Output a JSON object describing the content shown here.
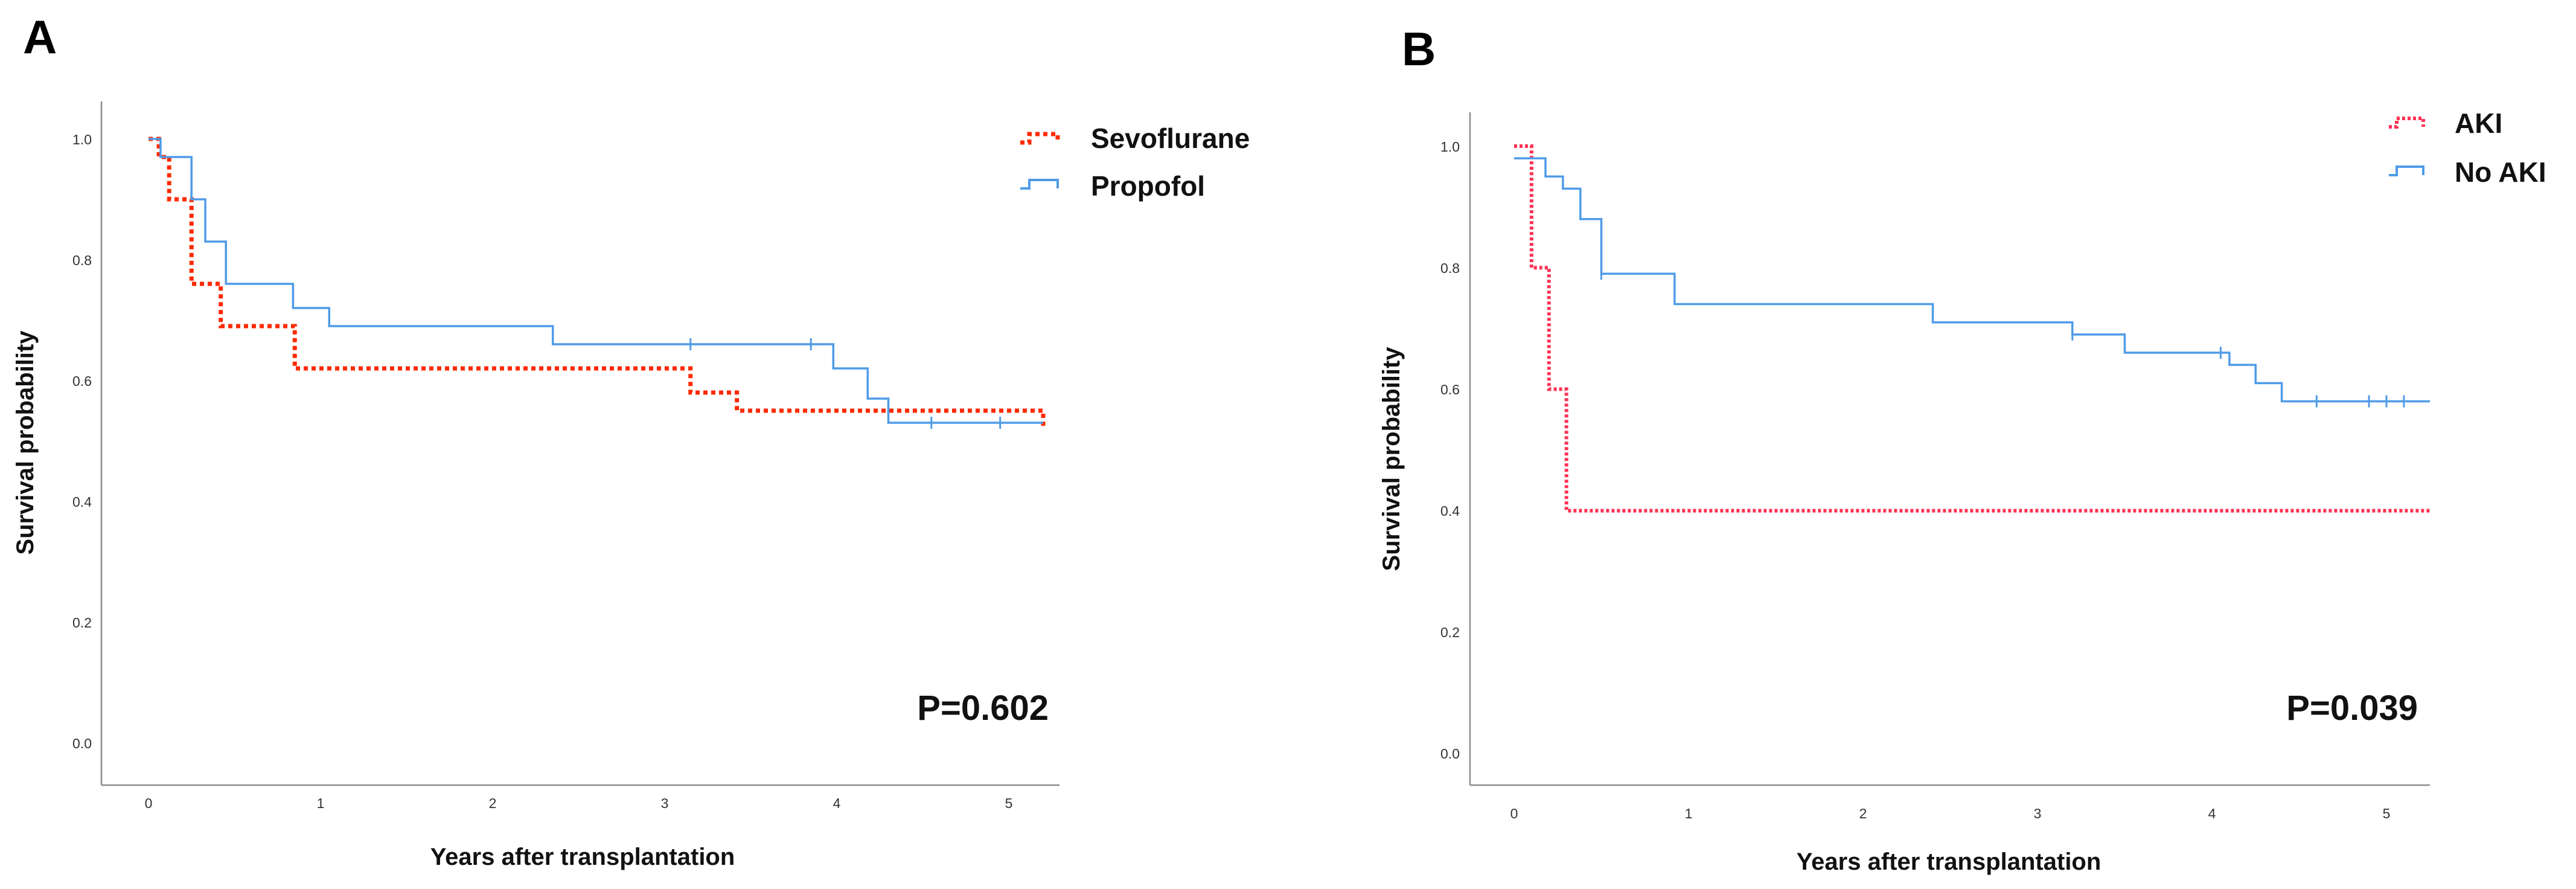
{
  "chart_data": [
    {
      "type": "line",
      "step": true,
      "panel": "A",
      "xlabel": "Years after transplantation",
      "ylabel": "Survival probability",
      "xlim": [
        -0.25,
        5.25
      ],
      "ylim": [
        0.0,
        1.0
      ],
      "xticks": [
        0,
        1,
        2,
        3,
        4,
        5
      ],
      "yticks": [
        0.0,
        0.2,
        0.4,
        0.6,
        0.8,
        1.0
      ],
      "tick_labels_x": [
        "0",
        "1",
        "2",
        "3",
        "4",
        "5"
      ],
      "tick_labels_y": [
        "0.0",
        "0.2",
        "0.4",
        "0.6",
        "0.8",
        "1.0"
      ],
      "legend_position": "top-right",
      "annotation": "P=0.602",
      "series": [
        {
          "name": "Sevoflurane",
          "color": "#ff2a00",
          "style": "dotted",
          "x": [
            0.0,
            0.06,
            0.12,
            0.25,
            0.42,
            0.85,
            3.15,
            3.42,
            5.2
          ],
          "y": [
            1.0,
            0.97,
            0.9,
            0.76,
            0.69,
            0.62,
            0.58,
            0.55,
            0.52
          ],
          "censored": []
        },
        {
          "name": "Propofol",
          "color": "#4f9be8",
          "style": "solid",
          "x": [
            0.0,
            0.07,
            0.25,
            0.33,
            0.45,
            0.84,
            1.05,
            2.35,
            3.98,
            4.18,
            4.3,
            5.2
          ],
          "y": [
            1.0,
            0.97,
            0.9,
            0.83,
            0.76,
            0.72,
            0.69,
            0.66,
            0.62,
            0.57,
            0.53,
            0.53
          ],
          "censored": [
            {
              "x": 3.15,
              "y": 0.66
            },
            {
              "x": 3.85,
              "y": 0.66
            },
            {
              "x": 4.55,
              "y": 0.53
            },
            {
              "x": 4.95,
              "y": 0.53
            }
          ]
        }
      ]
    },
    {
      "type": "line",
      "step": true,
      "panel": "B",
      "xlabel": "Years after transplantation",
      "ylabel": "Survival probability",
      "xlim": [
        -0.25,
        5.25
      ],
      "ylim": [
        0.0,
        1.0
      ],
      "xticks": [
        0,
        1,
        2,
        3,
        4,
        5
      ],
      "yticks": [
        0.0,
        0.2,
        0.4,
        0.6,
        0.8,
        1.0
      ],
      "tick_labels_x": [
        "0",
        "1",
        "2",
        "3",
        "4",
        "5"
      ],
      "tick_labels_y": [
        "0.0",
        "0.2",
        "0.4",
        "0.6",
        "0.8",
        "1.0"
      ],
      "legend_position": "top-right",
      "annotation": "P=0.039",
      "series": [
        {
          "name": "AKI",
          "color": "#ff3355",
          "style": "dotted",
          "x": [
            0.0,
            0.1,
            0.2,
            0.3,
            5.3
          ],
          "y": [
            1.0,
            0.8,
            0.6,
            0.4,
            0.4
          ],
          "censored": []
        },
        {
          "name": "No AKI",
          "color": "#4f9be8",
          "style": "solid",
          "x": [
            0.0,
            0.18,
            0.28,
            0.38,
            0.5,
            0.92,
            2.4,
            3.2,
            3.5,
            4.1,
            4.25,
            4.4,
            5.3
          ],
          "y": [
            0.98,
            0.95,
            0.93,
            0.88,
            0.79,
            0.74,
            0.71,
            0.69,
            0.66,
            0.64,
            0.61,
            0.58,
            0.58
          ],
          "censored": [
            {
              "x": 0.5,
              "y": 0.79
            },
            {
              "x": 3.2,
              "y": 0.69
            },
            {
              "x": 4.05,
              "y": 0.66
            },
            {
              "x": 4.6,
              "y": 0.58
            },
            {
              "x": 4.9,
              "y": 0.58
            },
            {
              "x": 5.0,
              "y": 0.58
            },
            {
              "x": 5.1,
              "y": 0.58
            }
          ]
        }
      ]
    }
  ]
}
